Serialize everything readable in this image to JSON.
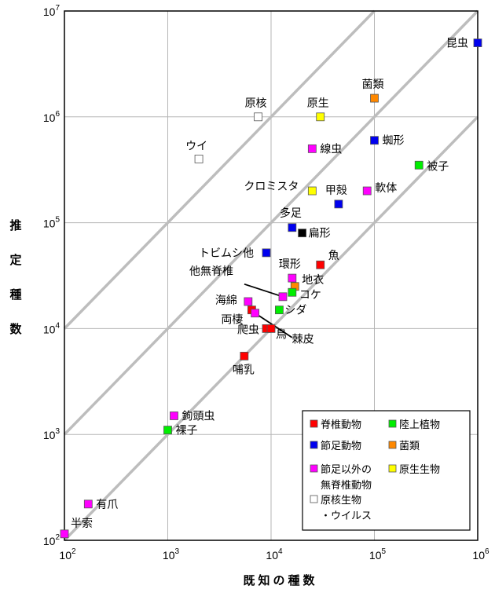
{
  "chart_data": {
    "type": "scatter",
    "xscale": "log",
    "yscale": "log",
    "xlim": [
      100,
      1000000
    ],
    "ylim": [
      100,
      10000000
    ],
    "xlabel": "既知の種数",
    "ylabel": "推定種数",
    "grid": true,
    "x_ticks": [
      {
        "base": "10",
        "exp": "2"
      },
      {
        "base": "10",
        "exp": "3"
      },
      {
        "base": "10",
        "exp": "4"
      },
      {
        "base": "10",
        "exp": "5"
      },
      {
        "base": "10",
        "exp": "6"
      }
    ],
    "y_ticks": [
      {
        "base": "10",
        "exp": "2"
      },
      {
        "base": "10",
        "exp": "3"
      },
      {
        "base": "10",
        "exp": "4"
      },
      {
        "base": "10",
        "exp": "5"
      },
      {
        "base": "10",
        "exp": "6"
      },
      {
        "base": "10",
        "exp": "7"
      }
    ],
    "reference_lines": [
      {
        "ratio": 1
      },
      {
        "ratio": 10
      },
      {
        "ratio": 100
      }
    ],
    "categories": [
      {
        "key": "vertebrate",
        "label": "脊椎動物",
        "color": "#ff0000"
      },
      {
        "key": "land_plant",
        "label": "陸上植物",
        "color": "#00ee00"
      },
      {
        "key": "arthropod",
        "label": "節足動物",
        "color": "#0000ee"
      },
      {
        "key": "fungi",
        "label": "菌類",
        "color": "#ff8800"
      },
      {
        "key": "other_invert",
        "label": "節足以外の無脊椎動物",
        "color": "#ff00ff"
      },
      {
        "key": "protist",
        "label": "原生生物",
        "color": "#ffff00"
      },
      {
        "key": "prokaryote",
        "label": "原核生物・ウイルス",
        "color": "#ffffff"
      },
      {
        "key": "other",
        "label": "",
        "color": "#000000"
      }
    ],
    "legend": {
      "position": "bottom-right",
      "items": [
        {
          "category": "vertebrate",
          "lines": [
            "脊椎動物"
          ]
        },
        {
          "category": "land_plant",
          "lines": [
            "陸上植物"
          ]
        },
        {
          "category": "arthropod",
          "lines": [
            "節足動物"
          ]
        },
        {
          "category": "fungi",
          "lines": [
            "菌類"
          ]
        },
        {
          "category": "other_invert",
          "lines": [
            "節足以外の",
            "無脊椎動物"
          ]
        },
        {
          "category": "protist",
          "lines": [
            "原生生物"
          ]
        },
        {
          "category": "prokaryote",
          "lines": [
            "原核生物",
            "・ウイルス"
          ]
        }
      ]
    },
    "points": [
      {
        "label": "昆虫",
        "x": 1000000,
        "y": 5000000,
        "category": "arthropod"
      },
      {
        "label": "菌類",
        "x": 100000,
        "y": 1500000,
        "category": "fungi"
      },
      {
        "label": "原核",
        "x": 7500,
        "y": 1000000,
        "category": "prokaryote"
      },
      {
        "label": "原生",
        "x": 30000,
        "y": 1000000,
        "category": "protist"
      },
      {
        "label": "ウイ",
        "x": 2000,
        "y": 400000,
        "category": "prokaryote"
      },
      {
        "label": "線虫",
        "x": 25000,
        "y": 500000,
        "category": "other_invert"
      },
      {
        "label": "蜘形",
        "x": 100000,
        "y": 600000,
        "category": "arthropod"
      },
      {
        "label": "被子",
        "x": 270000,
        "y": 350000,
        "category": "land_plant"
      },
      {
        "label": "クロミスタ",
        "x": 25000,
        "y": 200000,
        "category": "protist"
      },
      {
        "label": "甲殻",
        "x": 45000,
        "y": 150000,
        "category": "arthropod"
      },
      {
        "label": "軟体",
        "x": 85000,
        "y": 200000,
        "category": "other_invert"
      },
      {
        "label": "多足",
        "x": 16000,
        "y": 90000,
        "category": "arthropod"
      },
      {
        "label": "扁形",
        "x": 20000,
        "y": 80000,
        "category": "other"
      },
      {
        "label": "トビムシ他",
        "x": 9000,
        "y": 52000,
        "category": "arthropod"
      },
      {
        "label": "魚",
        "x": 30000,
        "y": 40000,
        "category": "vertebrate"
      },
      {
        "label": "環形",
        "x": 16000,
        "y": 30000,
        "category": "other_invert"
      },
      {
        "label": "地衣",
        "x": 17000,
        "y": 25000,
        "category": "fungi"
      },
      {
        "label": "コケ",
        "x": 16000,
        "y": 22000,
        "category": "land_plant"
      },
      {
        "label": "他無脊椎",
        "x": 13000,
        "y": 20000,
        "category": "other_invert"
      },
      {
        "label": "海綿",
        "x": 6000,
        "y": 18000,
        "category": "other_invert"
      },
      {
        "label": "シダ",
        "x": 12000,
        "y": 15000,
        "category": "land_plant"
      },
      {
        "label": "両棲",
        "x": 6500,
        "y": 15000,
        "category": "vertebrate"
      },
      {
        "label": "棘皮",
        "x": 7000,
        "y": 14000,
        "category": "other_invert"
      },
      {
        "label": "爬虫",
        "x": 9000,
        "y": 10000,
        "category": "vertebrate"
      },
      {
        "label": "鳥",
        "x": 10000,
        "y": 10000,
        "category": "vertebrate"
      },
      {
        "label": "哺乳",
        "x": 5500,
        "y": 5500,
        "category": "vertebrate"
      },
      {
        "label": "鉤頭虫",
        "x": 1150,
        "y": 1500,
        "category": "other_invert"
      },
      {
        "label": "裸子",
        "x": 1000,
        "y": 1100,
        "category": "land_plant"
      },
      {
        "label": "有爪",
        "x": 170,
        "y": 220,
        "category": "other_invert"
      },
      {
        "label": "半索",
        "x": 100,
        "y": 115,
        "category": "other_invert"
      }
    ]
  }
}
